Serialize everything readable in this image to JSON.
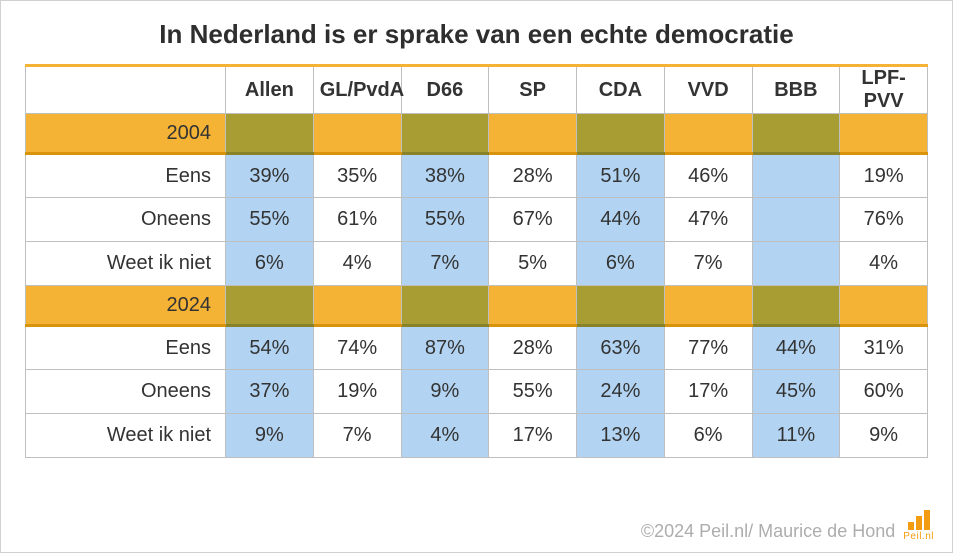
{
  "title": "In Nederland is er sprake van een echte democratie",
  "columns": [
    "Allen",
    "GL/PvdA",
    "D66",
    "SP",
    "CDA",
    "VVD",
    "BBB",
    "LPF-PVV"
  ],
  "highlight_pattern": [
    "odd",
    "even",
    "odd",
    "even",
    "odd",
    "even",
    "odd",
    "even"
  ],
  "colors": {
    "highlight_cell": "#b2d4f2",
    "plain_cell": "#ffffff",
    "year_row_label": "#f4b335",
    "year_row_odd": "#a79d33",
    "year_row_even": "#f4b335",
    "border": "#bfbfbf",
    "title": "#2e2e2e",
    "copyright": "#adadad",
    "logo": "#f39c12"
  },
  "sections": [
    {
      "year": "2004",
      "rows": [
        {
          "label": "Eens",
          "values": [
            "39%",
            "35%",
            "38%",
            "28%",
            "51%",
            "46%",
            "",
            "19%"
          ]
        },
        {
          "label": "Oneens",
          "values": [
            "55%",
            "61%",
            "55%",
            "67%",
            "44%",
            "47%",
            "",
            "76%"
          ]
        },
        {
          "label": "Weet ik niet",
          "values": [
            "6%",
            "4%",
            "7%",
            "5%",
            "6%",
            "7%",
            "",
            "4%"
          ]
        }
      ]
    },
    {
      "year": "2024",
      "rows": [
        {
          "label": "Eens",
          "values": [
            "54%",
            "74%",
            "87%",
            "28%",
            "63%",
            "77%",
            "44%",
            "31%"
          ]
        },
        {
          "label": "Oneens",
          "values": [
            "37%",
            "19%",
            "9%",
            "55%",
            "24%",
            "17%",
            "45%",
            "60%"
          ]
        },
        {
          "label": "Weet ik niet",
          "values": [
            "9%",
            "7%",
            "4%",
            "17%",
            "13%",
            "6%",
            "11%",
            "9%"
          ]
        }
      ]
    }
  ],
  "copyright": "©2024 Peil.nl/ Maurice de Hond",
  "logo_text": "Peil.nl"
}
